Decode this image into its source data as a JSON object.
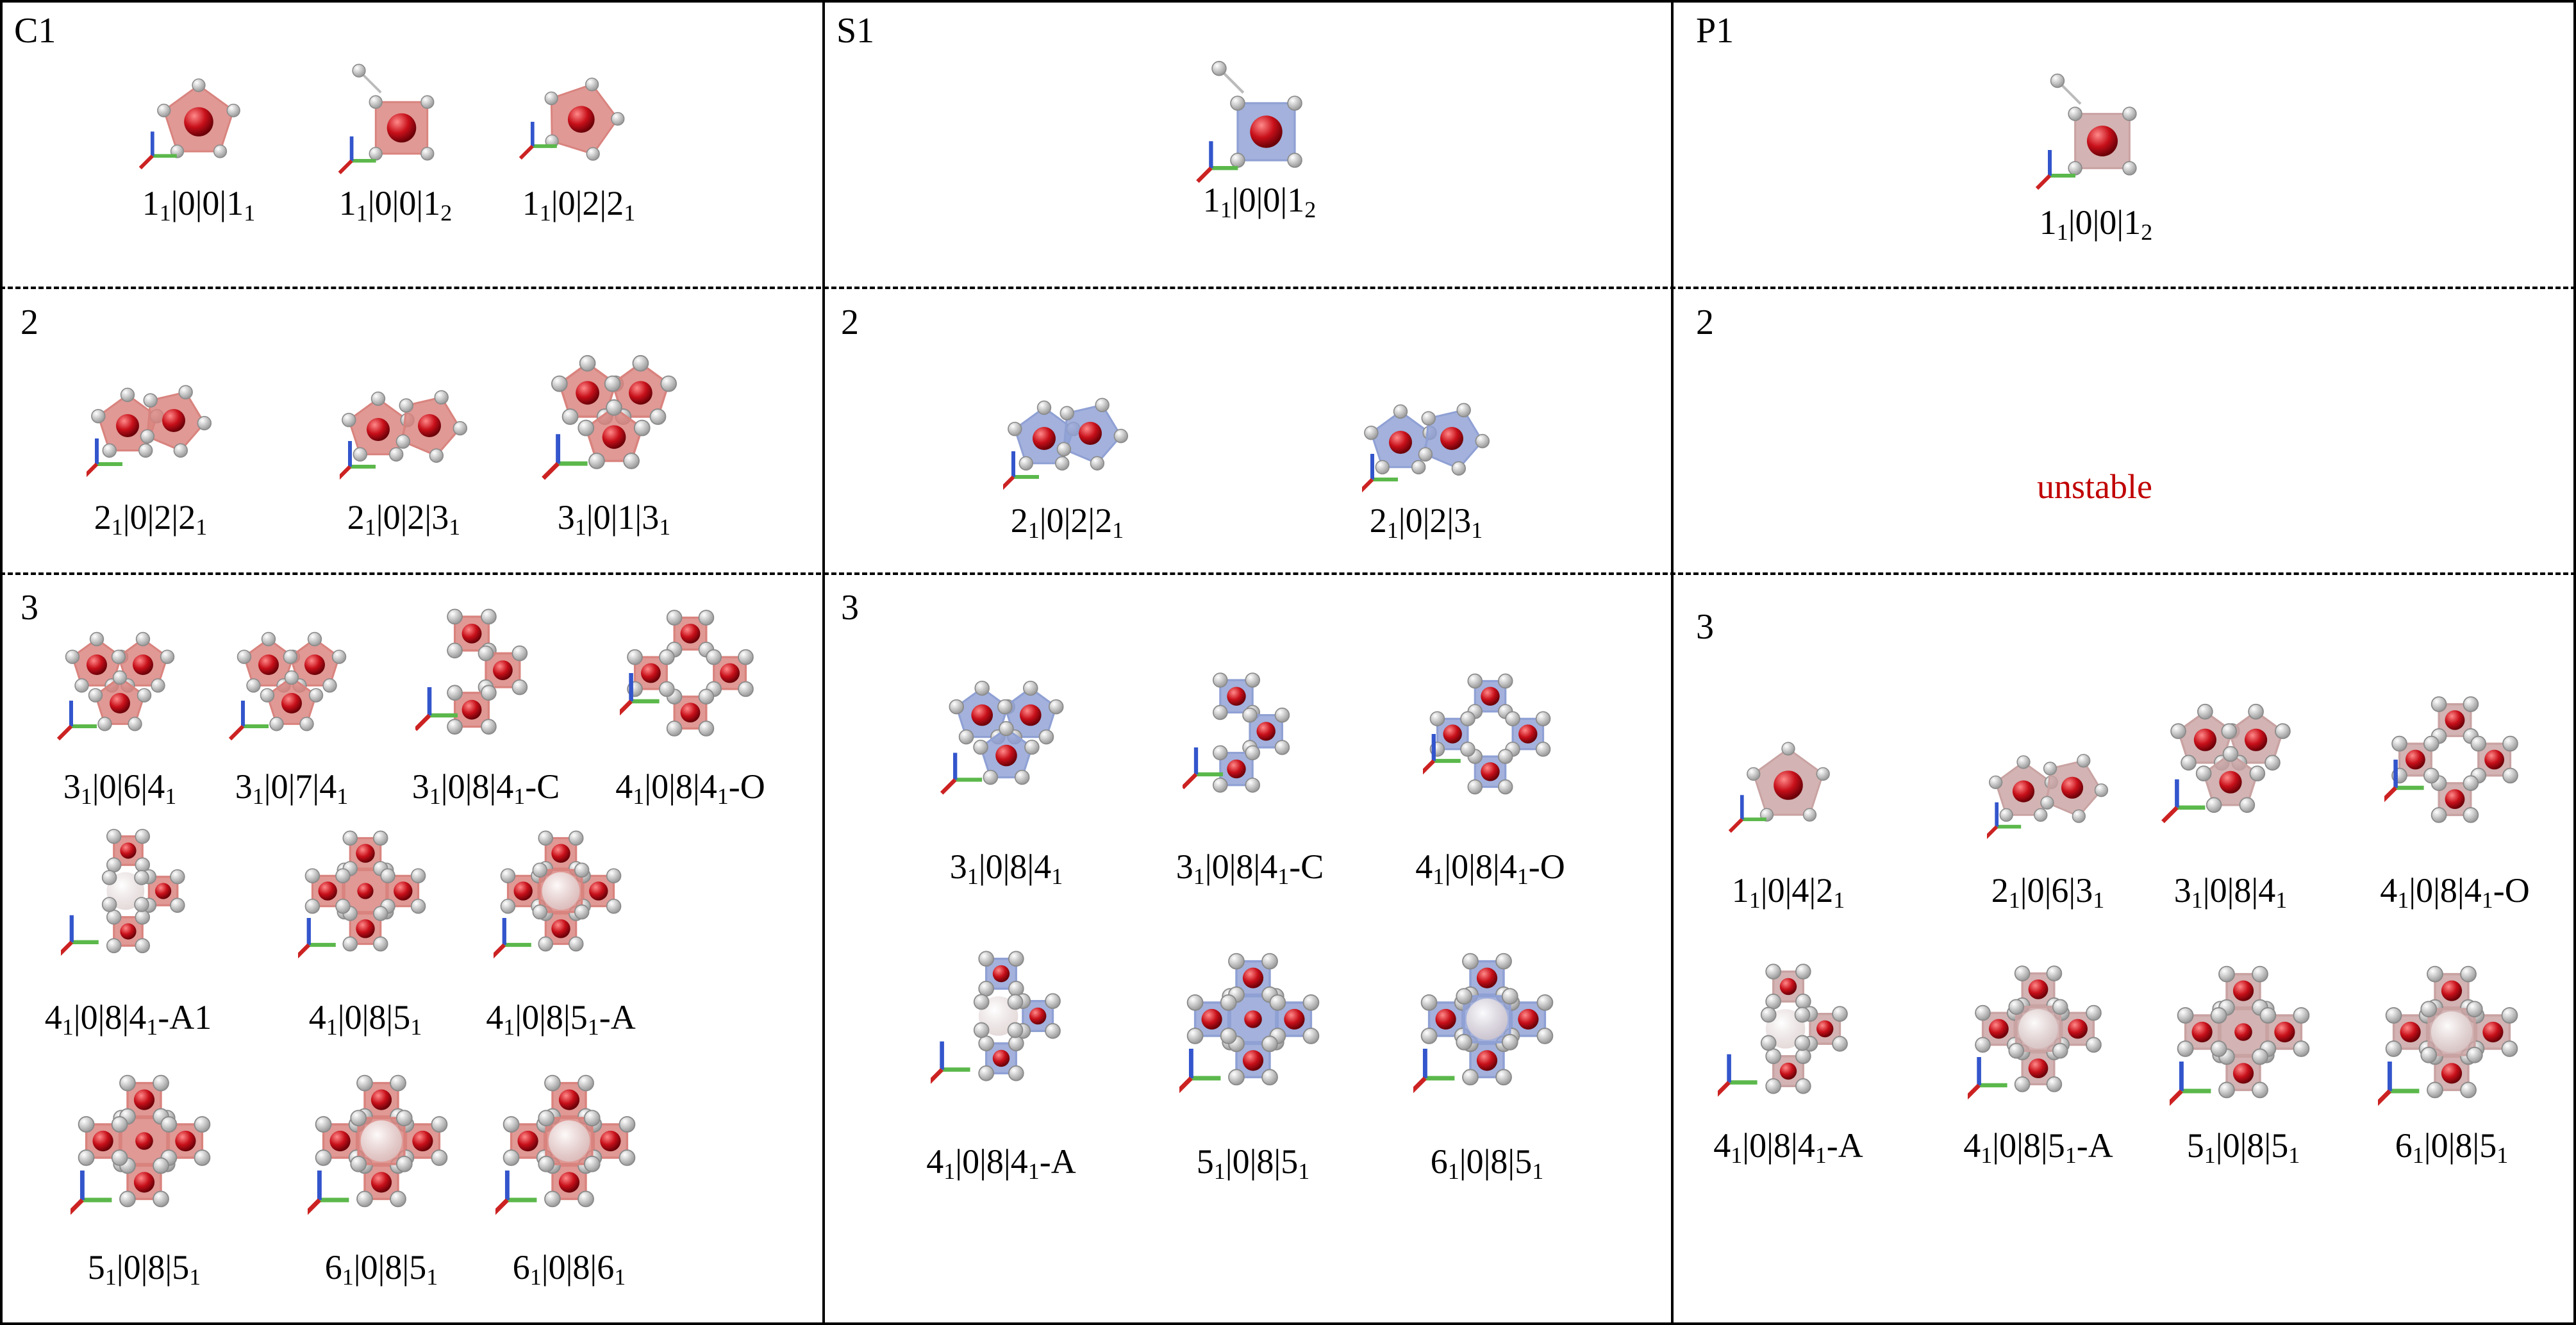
{
  "colors": {
    "C1": "#d9837e",
    "S1": "#8fa0d4",
    "P1": "#c9a2a2",
    "unstable": "#c00000"
  },
  "columns": [
    {
      "id": "C1",
      "color": "#d9837e",
      "atom": "red",
      "rows": [
        {
          "label": "C1",
          "items": [
            {
              "text": "1₁|0|0|1₁",
              "mol": "1a"
            },
            {
              "text": "1₁|0|0|1₂",
              "mol": "1b"
            },
            {
              "text": "1₁|0|2|2₁",
              "mol": "1c"
            }
          ]
        },
        {
          "label": "2",
          "items": [
            {
              "text": "2₁|0|2|2₁",
              "mol": "2a"
            },
            {
              "text": "2₁|0|2|3₁",
              "mol": "2b"
            },
            {
              "text": "3₁|0|1|3₁",
              "mol": "3tri"
            }
          ]
        },
        {
          "label": "3",
          "items": [
            {
              "text": "3₁|0|6|4₁",
              "mol": "3tri"
            },
            {
              "text": "3₁|0|7|4₁",
              "mol": "3tri"
            },
            {
              "text": "3₁|0|8|4₁-C",
              "mol": "3chain"
            },
            {
              "text": "4₁|0|8|4₁-O",
              "mol": "4ring"
            },
            {
              "text": "4₁|0|8|4₁-A1",
              "mol": "4A"
            },
            {
              "text": "4₁|0|8|5₁",
              "mol": "cross"
            },
            {
              "text": "4₁|0|8|5₁-A",
              "mol": "crossA"
            },
            {
              "text": "5₁|0|8|5₁",
              "mol": "cross"
            },
            {
              "text": "6₁|0|8|5₁",
              "mol": "crossA"
            },
            {
              "text": "6₁|0|8|6₁",
              "mol": "crossA"
            }
          ]
        }
      ]
    },
    {
      "id": "S1",
      "color": "#8fa0d4",
      "atom": "blue",
      "rows": [
        {
          "label": "S1",
          "items": [
            {
              "text": "1₁|0|0|1₂",
              "mol": "1b"
            }
          ]
        },
        {
          "label": "2",
          "items": [
            {
              "text": "2₁|0|2|2₁",
              "mol": "2a"
            },
            {
              "text": "2₁|0|2|3₁",
              "mol": "2b"
            }
          ]
        },
        {
          "label": "3",
          "items": [
            {
              "text": "3₁|0|8|4₁",
              "mol": "3tri"
            },
            {
              "text": "3₁|0|8|4₁-C",
              "mol": "3chain"
            },
            {
              "text": "4₁|0|8|4₁-O",
              "mol": "4ring"
            },
            {
              "text": "4₁|0|8|4₁-A",
              "mol": "4A"
            },
            {
              "text": "5₁|0|8|5₁",
              "mol": "cross"
            },
            {
              "text": "6₁|0|8|5₁",
              "mol": "crossA"
            }
          ]
        }
      ]
    },
    {
      "id": "P1",
      "color": "#c9a2a2",
      "atom": "darkred",
      "rows": [
        {
          "label": "P1",
          "items": [
            {
              "text": "1₁|0|0|1₂",
              "mol": "1b"
            }
          ]
        },
        {
          "label": "2",
          "unstable": "unstable",
          "items": []
        },
        {
          "label": "3",
          "items": [
            {
              "text": "1₁|0|4|2₁",
              "mol": "1a"
            },
            {
              "text": "2₁|0|6|3₁",
              "mol": "2b"
            },
            {
              "text": "3₁|0|8|4₁",
              "mol": "3tri"
            },
            {
              "text": "4₁|0|8|4₁-O",
              "mol": "4ring"
            },
            {
              "text": "4₁|0|8|4₁-A",
              "mol": "4A"
            },
            {
              "text": "4₁|0|8|5₁-A",
              "mol": "crossA"
            },
            {
              "text": "5₁|0|8|5₁",
              "mol": "cross"
            },
            {
              "text": "6₁|0|8|5₁",
              "mol": "crossA"
            }
          ]
        }
      ]
    }
  ]
}
